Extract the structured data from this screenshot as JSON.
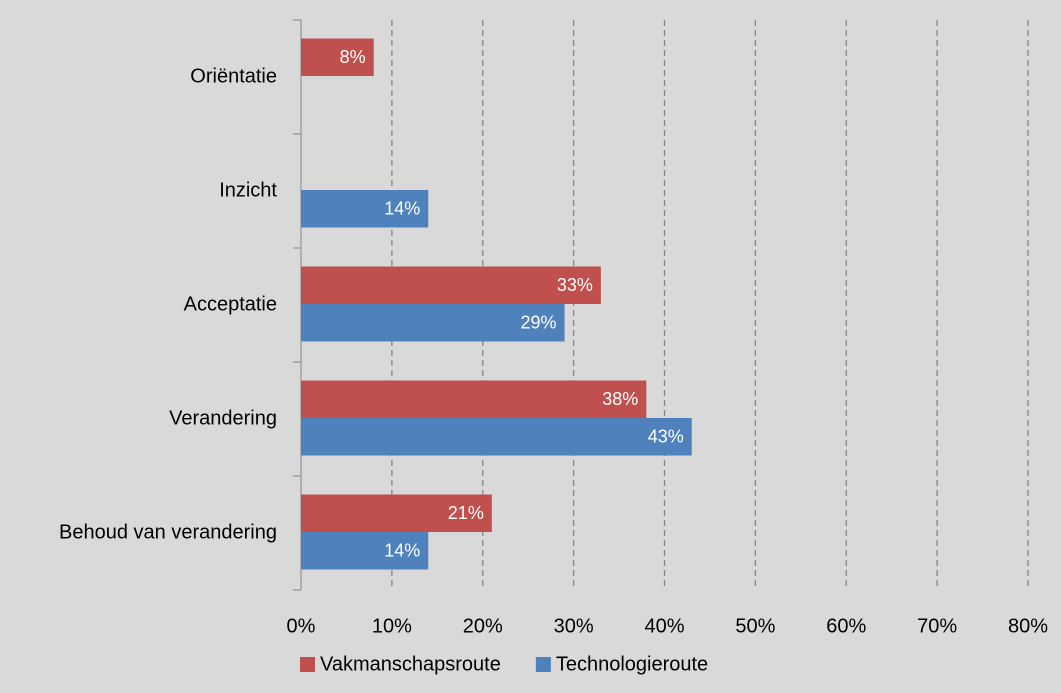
{
  "chart_data": {
    "type": "hbar",
    "categories": [
      "Oriëntatie",
      "Inzicht",
      "Acceptatie",
      "Verandering",
      "Behoud van verandering"
    ],
    "series": [
      {
        "name": "Vakmanschapsroute",
        "color": "#c0504d",
        "values": [
          8,
          null,
          33,
          38,
          21
        ],
        "value_labels": [
          "8%",
          null,
          "33%",
          "38%",
          "21%"
        ]
      },
      {
        "name": "Technologieroute",
        "color": "#4f81bd",
        "values": [
          null,
          14,
          29,
          43,
          14
        ],
        "value_labels": [
          null,
          "14%",
          "29%",
          "43%",
          "14%"
        ]
      }
    ],
    "xlim": [
      0,
      80
    ],
    "xticks": [
      {
        "value": 0,
        "label": "0%"
      },
      {
        "value": 10,
        "label": "10%"
      },
      {
        "value": 20,
        "label": "20%"
      },
      {
        "value": 30,
        "label": "30%"
      },
      {
        "value": 40,
        "label": "40%"
      },
      {
        "value": 50,
        "label": "50%"
      },
      {
        "value": 60,
        "label": "60%"
      },
      {
        "value": 70,
        "label": "70%"
      },
      {
        "value": 80,
        "label": "80%"
      }
    ],
    "grid": true,
    "legend": "bottom"
  }
}
